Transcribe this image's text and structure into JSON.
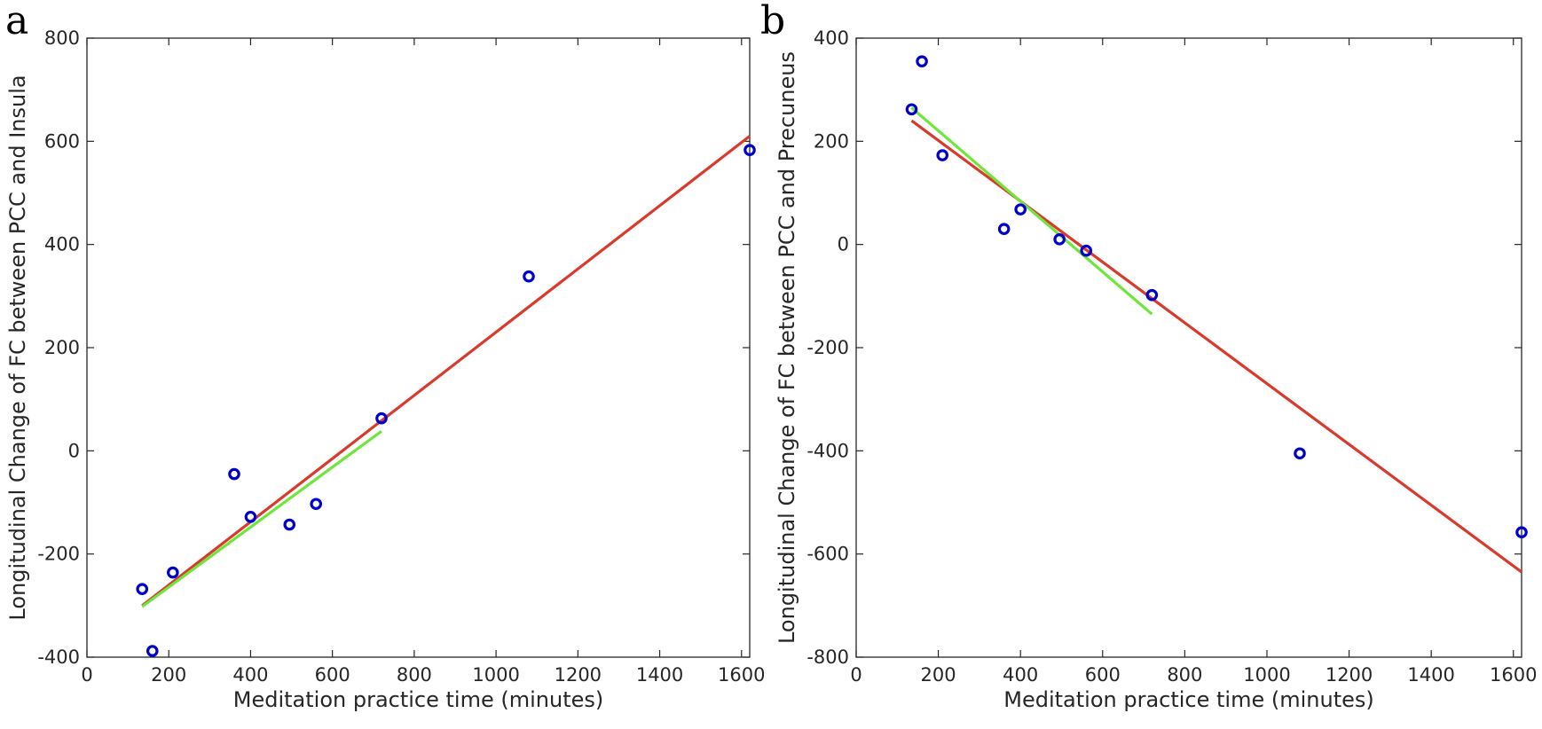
{
  "chart_data": [
    {
      "type": "scatter",
      "panel_label": "a",
      "title": "",
      "xlabel": "Meditation practice time (minutes)",
      "ylabel": "Longitudinal Change of FC between PCC and Insula",
      "xlim": [
        0,
        1620
      ],
      "ylim": [
        -400,
        800
      ],
      "xticks": [
        0,
        200,
        400,
        600,
        800,
        1000,
        1200,
        1400,
        1600
      ],
      "yticks": [
        -400,
        -200,
        0,
        200,
        400,
        600,
        800
      ],
      "grid": false,
      "points_color": "#0000cc",
      "points": [
        {
          "x": 135,
          "y": -268
        },
        {
          "x": 160,
          "y": -388
        },
        {
          "x": 210,
          "y": -236
        },
        {
          "x": 360,
          "y": -45
        },
        {
          "x": 400,
          "y": -128
        },
        {
          "x": 495,
          "y": -143
        },
        {
          "x": 560,
          "y": -103
        },
        {
          "x": 720,
          "y": 63
        },
        {
          "x": 1080,
          "y": 338
        },
        {
          "x": 1620,
          "y": 583
        }
      ],
      "fit_lines": [
        {
          "name": "fit-all",
          "color": "#d93a2b",
          "x": [
            135,
            1620
          ],
          "y": [
            -300,
            610
          ]
        },
        {
          "name": "fit-subset",
          "color": "#6ee63c",
          "x": [
            135,
            720
          ],
          "y": [
            -302,
            38
          ]
        }
      ]
    },
    {
      "type": "scatter",
      "panel_label": "b",
      "title": "",
      "xlabel": "Meditation practice time (minutes)",
      "ylabel": "Longitudinal Change of FC between PCC and Precuneus",
      "xlim": [
        0,
        1620
      ],
      "ylim": [
        -800,
        400
      ],
      "xticks": [
        0,
        200,
        400,
        600,
        800,
        1000,
        1200,
        1400,
        1600
      ],
      "yticks": [
        -800,
        -600,
        -400,
        -200,
        0,
        200,
        400
      ],
      "grid": false,
      "points_color": "#0000cc",
      "points": [
        {
          "x": 135,
          "y": 262
        },
        {
          "x": 160,
          "y": 355
        },
        {
          "x": 210,
          "y": 173
        },
        {
          "x": 360,
          "y": 30
        },
        {
          "x": 400,
          "y": 68
        },
        {
          "x": 495,
          "y": 10
        },
        {
          "x": 560,
          "y": -12
        },
        {
          "x": 720,
          "y": -98
        },
        {
          "x": 1080,
          "y": -405
        },
        {
          "x": 1620,
          "y": -558
        }
      ],
      "fit_lines": [
        {
          "name": "fit-all",
          "color": "#d93a2b",
          "x": [
            135,
            1620
          ],
          "y": [
            240,
            -635
          ]
        },
        {
          "name": "fit-subset",
          "color": "#6ee63c",
          "x": [
            135,
            720
          ],
          "y": [
            265,
            -135
          ]
        }
      ]
    }
  ]
}
